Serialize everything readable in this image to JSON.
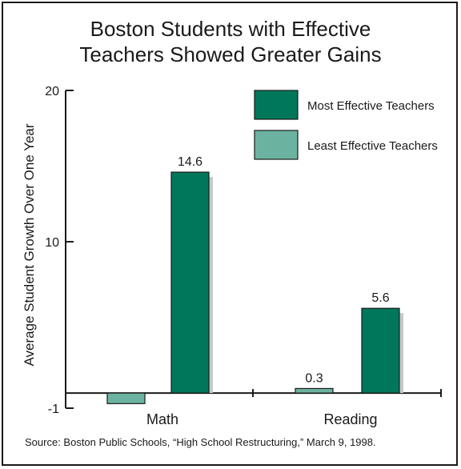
{
  "title_line1": "Boston Students with Effective",
  "title_line2": "Teachers Showed Greater Gains",
  "source": "Source: Boston Public Schools, “High School Restructuring,” March 9, 1998.",
  "colors": {
    "most": "#00775a",
    "least": "#6bb3a0",
    "shadow": "#c8c8c8",
    "axis": "#1a1a1a"
  },
  "chart_data": {
    "type": "bar",
    "title": "Boston Students with Effective Teachers Showed Greater Gains",
    "ylabel": "Average Student Growth Over One Year",
    "xlabel": "",
    "categories": [
      "Math",
      "Reading"
    ],
    "series": [
      {
        "name": "Least Effective Teachers",
        "values": [
          -0.7,
          0.3
        ],
        "labels": [
          "",
          "0.3"
        ]
      },
      {
        "name": "Most Effective Teachers",
        "values": [
          14.6,
          5.6
        ],
        "labels": [
          "14.6",
          "5.6"
        ]
      }
    ],
    "ylim": [
      -1,
      20
    ],
    "yticks": [
      -1,
      10,
      20
    ],
    "ytick_labels": [
      "-1",
      "10",
      "20"
    ],
    "legend_position": "top-right",
    "grid": false
  }
}
